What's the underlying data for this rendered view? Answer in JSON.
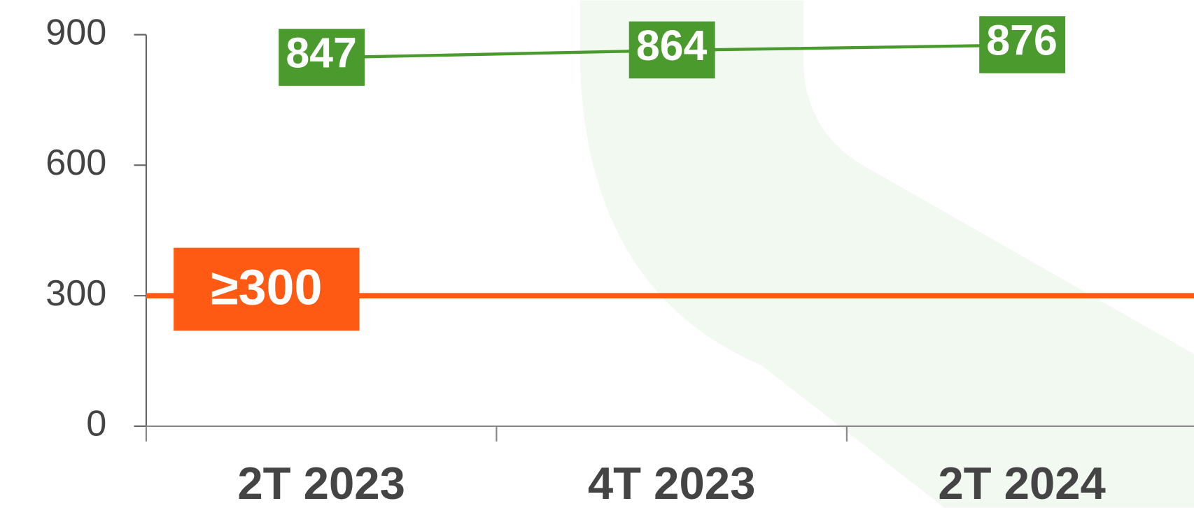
{
  "chart_data": {
    "type": "line",
    "categories": [
      "2T 2023",
      "4T 2023",
      "2T 2024"
    ],
    "series": [
      {
        "name": "",
        "color": "#4a9a2e",
        "values": [
          847,
          864,
          876
        ]
      }
    ],
    "reference_line": {
      "value": 300,
      "label": "≥300",
      "color": "#ff5a14"
    },
    "ylim": [
      0,
      900
    ],
    "yticks": [
      0,
      300,
      600,
      900
    ],
    "grid": false
  }
}
